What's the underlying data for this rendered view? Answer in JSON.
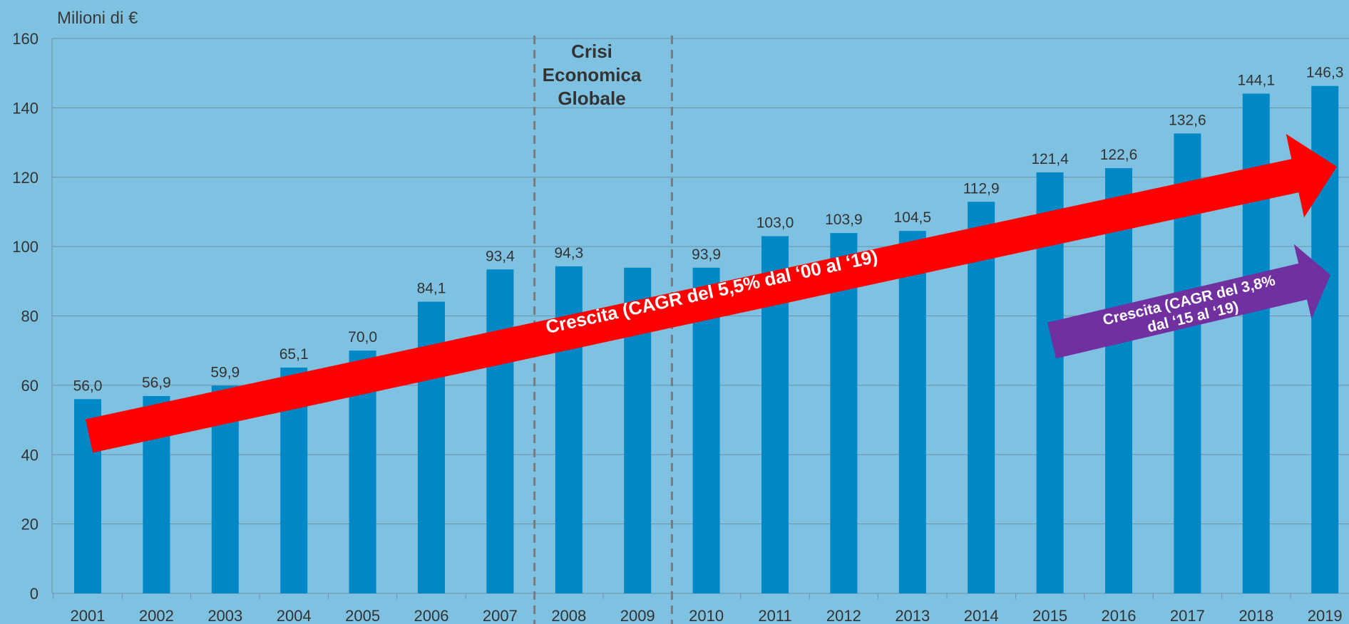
{
  "chart_data": {
    "type": "bar",
    "ylabel": "Milioni di €",
    "ylim": [
      0,
      160
    ],
    "yticks": [
      0,
      20,
      40,
      60,
      80,
      100,
      120,
      140,
      160
    ],
    "grid": true,
    "categories": [
      "2001",
      "2002",
      "2003",
      "2004",
      "2005",
      "2006",
      "2007",
      "2008",
      "2009",
      "2010",
      "2011",
      "2012",
      "2013",
      "2014",
      "2015",
      "2016",
      "2017",
      "2018",
      "2019"
    ],
    "values": [
      56.0,
      56.9,
      59.9,
      65.1,
      70.0,
      84.1,
      93.4,
      94.3,
      93.9,
      93.9,
      103.0,
      103.9,
      104.5,
      112.9,
      121.4,
      122.6,
      132.6,
      144.1,
      146.3
    ],
    "data_labels": [
      "56,0",
      "56,9",
      "59,9",
      "65,1",
      "70,0",
      "84,1",
      "93,4",
      "94,3",
      "",
      "93,9",
      "103,0",
      "103,9",
      "104,5",
      "112,9",
      "121,4",
      "122,6",
      "132,6",
      "144,1",
      "146,3"
    ],
    "bar_color": "#0088c6",
    "annotations": {
      "crisis_region": {
        "from_category": "2008",
        "to_category": "2009",
        "lines": [
          "Crisi",
          "Economica",
          "Globale"
        ]
      },
      "growth_arrow": {
        "text": "Crescita (CAGR del 5,5% dal ‘00 al ‘19)",
        "color": "#ff0000"
      },
      "growth_arrow_recent": {
        "lines": [
          "Crescita (CAGR del 3,8%",
          "dal ‘15 al ‘19)"
        ],
        "color": "#7030a0"
      }
    }
  }
}
